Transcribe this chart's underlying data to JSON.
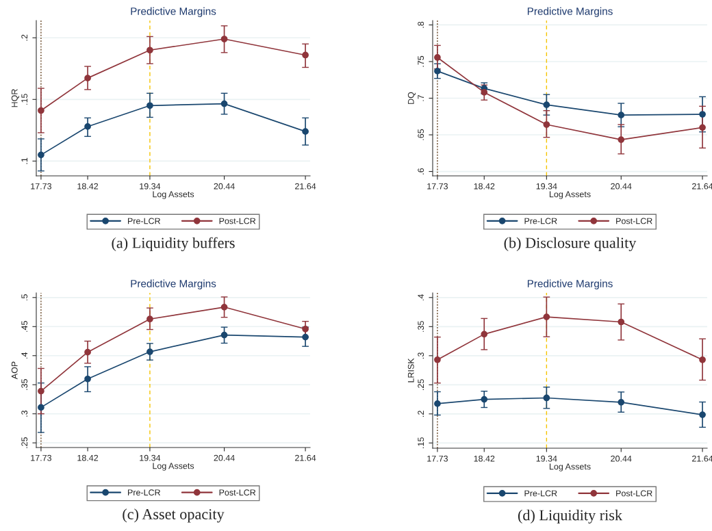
{
  "chart_data": [
    {
      "type": "line",
      "title": "Predictive Margins",
      "xlabel": "Log Assets",
      "ylabel": "HQR",
      "annotations": [
        "(a) Liquidity buffers"
      ],
      "x": [
        17.73,
        18.42,
        19.34,
        20.44,
        21.64
      ],
      "xlim": [
        17.66,
        21.71
      ],
      "xticks": [
        17.73,
        18.42,
        19.34,
        20.44,
        21.64
      ],
      "ylim": [
        0.088,
        0.214
      ],
      "yticks": [
        {
          "value": 0.1,
          "label": ".1"
        },
        {
          "value": 0.15,
          "label": ".15"
        },
        {
          "value": 0.2,
          "label": ".2"
        }
      ],
      "grid": "y",
      "legend": "bottom",
      "marker": "circle",
      "line_style": "solid",
      "ref_lines": [
        {
          "axis": "x",
          "value": 17.73,
          "color": "#6b4a2a",
          "line_style": "dotted"
        },
        {
          "axis": "x",
          "value": 19.34,
          "color": "#f5c400",
          "line_style": "dashed"
        }
      ],
      "series": [
        {
          "name": "Pre-LCR",
          "color": "#1a476f",
          "values": [
            0.105,
            0.128,
            0.145,
            0.1465,
            0.124
          ],
          "errors": [
            [
              0.092,
              0.118
            ],
            [
              0.12,
              0.135
            ],
            [
              0.1355,
              0.155
            ],
            [
              0.138,
              0.155
            ],
            [
              0.113,
              0.135
            ]
          ]
        },
        {
          "name": "Post-LCR",
          "color": "#90353b",
          "values": [
            0.141,
            0.1673,
            0.19,
            0.199,
            0.186
          ],
          "errors": [
            [
              0.123,
              0.159
            ],
            [
              0.158,
              0.1768
            ],
            [
              0.179,
              0.201
            ],
            [
              0.188,
              0.2097
            ],
            [
              0.176,
              0.195
            ]
          ]
        }
      ]
    },
    {
      "type": "line",
      "title": "Predictive Margins",
      "xlabel": "Log Assets",
      "ylabel": "DQ",
      "annotations": [
        "(b) Disclosure quality"
      ],
      "x": [
        17.73,
        18.42,
        19.34,
        20.44,
        21.64
      ],
      "xlim": [
        17.66,
        21.71
      ],
      "xticks": [
        17.73,
        18.42,
        19.34,
        20.44,
        21.64
      ],
      "ylim": [
        0.594,
        0.806
      ],
      "yticks": [
        {
          "value": 0.6,
          "label": ".6"
        },
        {
          "value": 0.65,
          "label": ".65"
        },
        {
          "value": 0.7,
          "label": ".7"
        },
        {
          "value": 0.75,
          "label": ".75"
        },
        {
          "value": 0.8,
          "label": ".8"
        }
      ],
      "grid": "y",
      "legend": "bottom",
      "marker": "circle",
      "line_style": "solid",
      "ref_lines": [
        {
          "axis": "x",
          "value": 17.73,
          "color": "#6b4a2a",
          "line_style": "dotted"
        },
        {
          "axis": "x",
          "value": 19.34,
          "color": "#f5c400",
          "line_style": "dashed"
        }
      ],
      "series": [
        {
          "name": "Pre-LCR",
          "color": "#1a476f",
          "values": [
            0.737,
            0.7134,
            0.691,
            0.677,
            0.678
          ],
          "errors": [
            [
              0.727,
              0.747
            ],
            [
              0.706,
              0.721
            ],
            [
              0.677,
              0.705
            ],
            [
              0.661,
              0.693
            ],
            [
              0.654,
              0.702
            ]
          ]
        },
        {
          "name": "Post-LCR",
          "color": "#90353b",
          "values": [
            0.7556,
            0.708,
            0.664,
            0.6434,
            0.66
          ],
          "errors": [
            [
              0.74,
              0.772
            ],
            [
              0.6975,
              0.718
            ],
            [
              0.6466,
              0.683
            ],
            [
              0.624,
              0.664
            ],
            [
              0.632,
              0.689
            ]
          ]
        }
      ]
    },
    {
      "type": "line",
      "title": "Predictive Margins",
      "xlabel": "Log Assets",
      "ylabel": "AOP",
      "annotations": [
        "(c) Asset opacity"
      ],
      "x": [
        17.73,
        18.42,
        19.34,
        20.44,
        21.64
      ],
      "xlim": [
        17.66,
        21.71
      ],
      "xticks": [
        17.73,
        18.42,
        19.34,
        20.44,
        21.64
      ],
      "ylim": [
        0.242,
        0.508
      ],
      "yticks": [
        {
          "value": 0.25,
          "label": ".25"
        },
        {
          "value": 0.3,
          "label": ".3"
        },
        {
          "value": 0.35,
          "label": ".35"
        },
        {
          "value": 0.4,
          "label": ".4"
        },
        {
          "value": 0.45,
          "label": ".45"
        },
        {
          "value": 0.5,
          "label": ".5"
        }
      ],
      "grid": "y",
      "legend": "bottom",
      "marker": "circle",
      "line_style": "solid",
      "ref_lines": [
        {
          "axis": "x",
          "value": 17.73,
          "color": "#6b4a2a",
          "line_style": "dotted"
        },
        {
          "axis": "x",
          "value": 19.34,
          "color": "#f5c400",
          "line_style": "dashed"
        }
      ],
      "series": [
        {
          "name": "Pre-LCR",
          "color": "#1a476f",
          "values": [
            0.311,
            0.36,
            0.4067,
            0.4355,
            0.432
          ],
          "errors": [
            [
              0.268,
              0.353
            ],
            [
              0.338,
              0.381
            ],
            [
              0.3925,
              0.421
            ],
            [
              0.4215,
              0.449
            ],
            [
              0.416,
              0.449
            ]
          ]
        },
        {
          "name": "Post-LCR",
          "color": "#90353b",
          "values": [
            0.339,
            0.406,
            0.463,
            0.4835,
            0.4459
          ],
          "errors": [
            [
              0.3,
              0.378
            ],
            [
              0.387,
              0.425
            ],
            [
              0.445,
              0.482
            ],
            [
              0.466,
              0.501
            ],
            [
              0.432,
              0.459
            ]
          ]
        }
      ]
    },
    {
      "type": "line",
      "title": "Predictive Margins",
      "xlabel": "Log Assets",
      "ylabel": "LRISK",
      "annotations": [
        "(d) Liquidity risk"
      ],
      "x": [
        17.73,
        18.42,
        19.34,
        20.44,
        21.64
      ],
      "xlim": [
        17.66,
        21.71
      ],
      "xticks": [
        17.73,
        18.42,
        19.34,
        20.44,
        21.64
      ],
      "ylim": [
        0.141,
        0.408
      ],
      "yticks": [
        {
          "value": 0.15,
          "label": ".15"
        },
        {
          "value": 0.2,
          "label": ".2"
        },
        {
          "value": 0.25,
          "label": ".25"
        },
        {
          "value": 0.3,
          "label": ".3"
        },
        {
          "value": 0.35,
          "label": ".35"
        },
        {
          "value": 0.4,
          "label": ".4"
        }
      ],
      "grid": "y",
      "legend": "bottom",
      "marker": "circle",
      "line_style": "solid",
      "ref_lines": [
        {
          "axis": "x",
          "value": 17.73,
          "color": "#6b4a2a",
          "line_style": "dotted"
        },
        {
          "axis": "x",
          "value": 19.34,
          "color": "#f5c400",
          "line_style": "dashed"
        }
      ],
      "series": [
        {
          "name": "Pre-LCR",
          "color": "#1a476f",
          "values": [
            0.2176,
            0.225,
            0.2275,
            0.22,
            0.1985
          ],
          "errors": [
            [
              0.198,
              0.238
            ],
            [
              0.211,
              0.239
            ],
            [
              0.2094,
              0.246
            ],
            [
              0.203,
              0.2376
            ],
            [
              0.177,
              0.2204
            ]
          ]
        },
        {
          "name": "Post-LCR",
          "color": "#90353b",
          "values": [
            0.293,
            0.337,
            0.3667,
            0.358,
            0.293
          ],
          "errors": [
            [
              0.253,
              0.332
            ],
            [
              0.3104,
              0.364
            ],
            [
              0.3326,
              0.4008
            ],
            [
              0.327,
              0.389
            ],
            [
              0.258,
              0.329
            ]
          ]
        }
      ]
    }
  ]
}
